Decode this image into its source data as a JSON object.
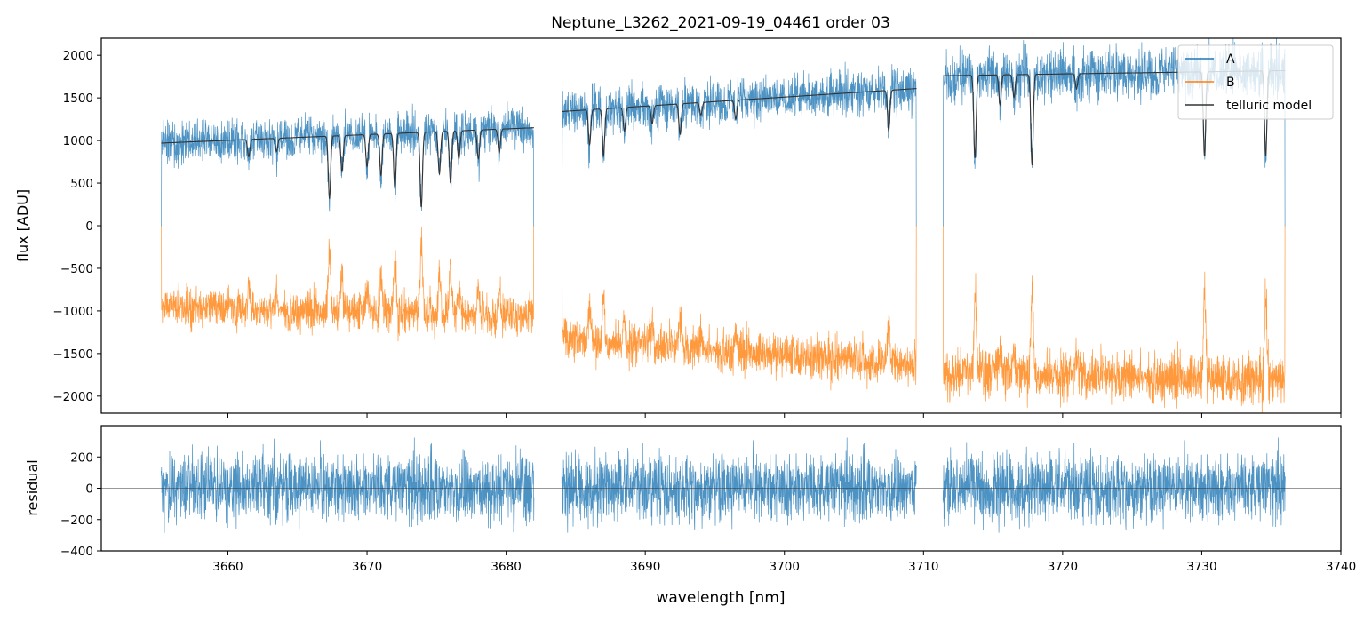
{
  "chart_data": {
    "type": "line",
    "title": "Neptune_L3262_2021-09-19_04461  order 03",
    "xlabel": "wavelength [nm]",
    "panels": [
      {
        "name": "spectrum",
        "ylabel": "flux [ADU]",
        "xlim": [
          3650.9,
          3740
        ],
        "ylim": [
          -2200,
          2200
        ],
        "yticks": [
          2000,
          1500,
          1000,
          500,
          0,
          -500,
          -1000,
          -1500,
          -2000
        ],
        "ytick_labels": [
          "2000",
          "1500",
          "1000",
          "500",
          "0",
          "−500",
          "−1000",
          "−1500",
          "−2000"
        ],
        "legend": {
          "placement": "top-right",
          "entries": [
            "A",
            "B",
            "telluric model"
          ]
        },
        "segments": [
          {
            "start": 3655.2,
            "end": 3682.0,
            "A_continuum": [
              970,
              1150
            ],
            "B_continuum": [
              -950,
              -1050
            ],
            "noise": 120
          },
          {
            "start": 3684.0,
            "end": 3709.5,
            "A_continuum": [
              1340,
              1610
            ],
            "B_continuum": [
              -1320,
              -1620
            ],
            "noise": 130
          },
          {
            "start": 3711.4,
            "end": 3736.0,
            "A_continuum": [
              1760,
              1820
            ],
            "B_continuum": [
              -1720,
              -1800
            ],
            "noise": 150
          }
        ],
        "telluric_lines": [
          {
            "wl": 3661.5,
            "depth": 0.2
          },
          {
            "wl": 3663.5,
            "depth": 0.15
          },
          {
            "wl": 3667.3,
            "depth": 0.7
          },
          {
            "wl": 3668.2,
            "depth": 0.4
          },
          {
            "wl": 3670.0,
            "depth": 0.35
          },
          {
            "wl": 3671.0,
            "depth": 0.45
          },
          {
            "wl": 3672.0,
            "depth": 0.6
          },
          {
            "wl": 3673.9,
            "depth": 0.8
          },
          {
            "wl": 3675.2,
            "depth": 0.45
          },
          {
            "wl": 3676.0,
            "depth": 0.55
          },
          {
            "wl": 3676.6,
            "depth": 0.3
          },
          {
            "wl": 3678.0,
            "depth": 0.3
          },
          {
            "wl": 3679.5,
            "depth": 0.25
          },
          {
            "wl": 3686.0,
            "depth": 0.3
          },
          {
            "wl": 3687.0,
            "depth": 0.4
          },
          {
            "wl": 3688.5,
            "depth": 0.2
          },
          {
            "wl": 3690.5,
            "depth": 0.15
          },
          {
            "wl": 3692.5,
            "depth": 0.25
          },
          {
            "wl": 3694.0,
            "depth": 0.1
          },
          {
            "wl": 3696.5,
            "depth": 0.15
          },
          {
            "wl": 3707.5,
            "depth": 0.3
          },
          {
            "wl": 3713.7,
            "depth": 0.55
          },
          {
            "wl": 3715.5,
            "depth": 0.2
          },
          {
            "wl": 3716.5,
            "depth": 0.15
          },
          {
            "wl": 3717.8,
            "depth": 0.6
          },
          {
            "wl": 3721.0,
            "depth": 0.1
          },
          {
            "wl": 3730.2,
            "depth": 0.55
          },
          {
            "wl": 3734.6,
            "depth": 0.55
          }
        ]
      },
      {
        "name": "residual",
        "ylabel": "residual",
        "ylim": [
          -400,
          400
        ],
        "yticks": [
          200,
          0,
          -200,
          -400
        ],
        "ytick_labels": [
          "200",
          "0",
          "−200",
          "−400"
        ],
        "noise": 110
      }
    ],
    "xticks": [
      3660,
      3670,
      3680,
      3690,
      3700,
      3710,
      3720,
      3730,
      3740
    ],
    "xtick_labels": [
      "3660",
      "3670",
      "3680",
      "3690",
      "3700",
      "3710",
      "3720",
      "3730",
      "3740"
    ],
    "colors": {
      "A": "#1f77b4",
      "B": "#ff7f0e",
      "telluric": "#333333"
    }
  }
}
